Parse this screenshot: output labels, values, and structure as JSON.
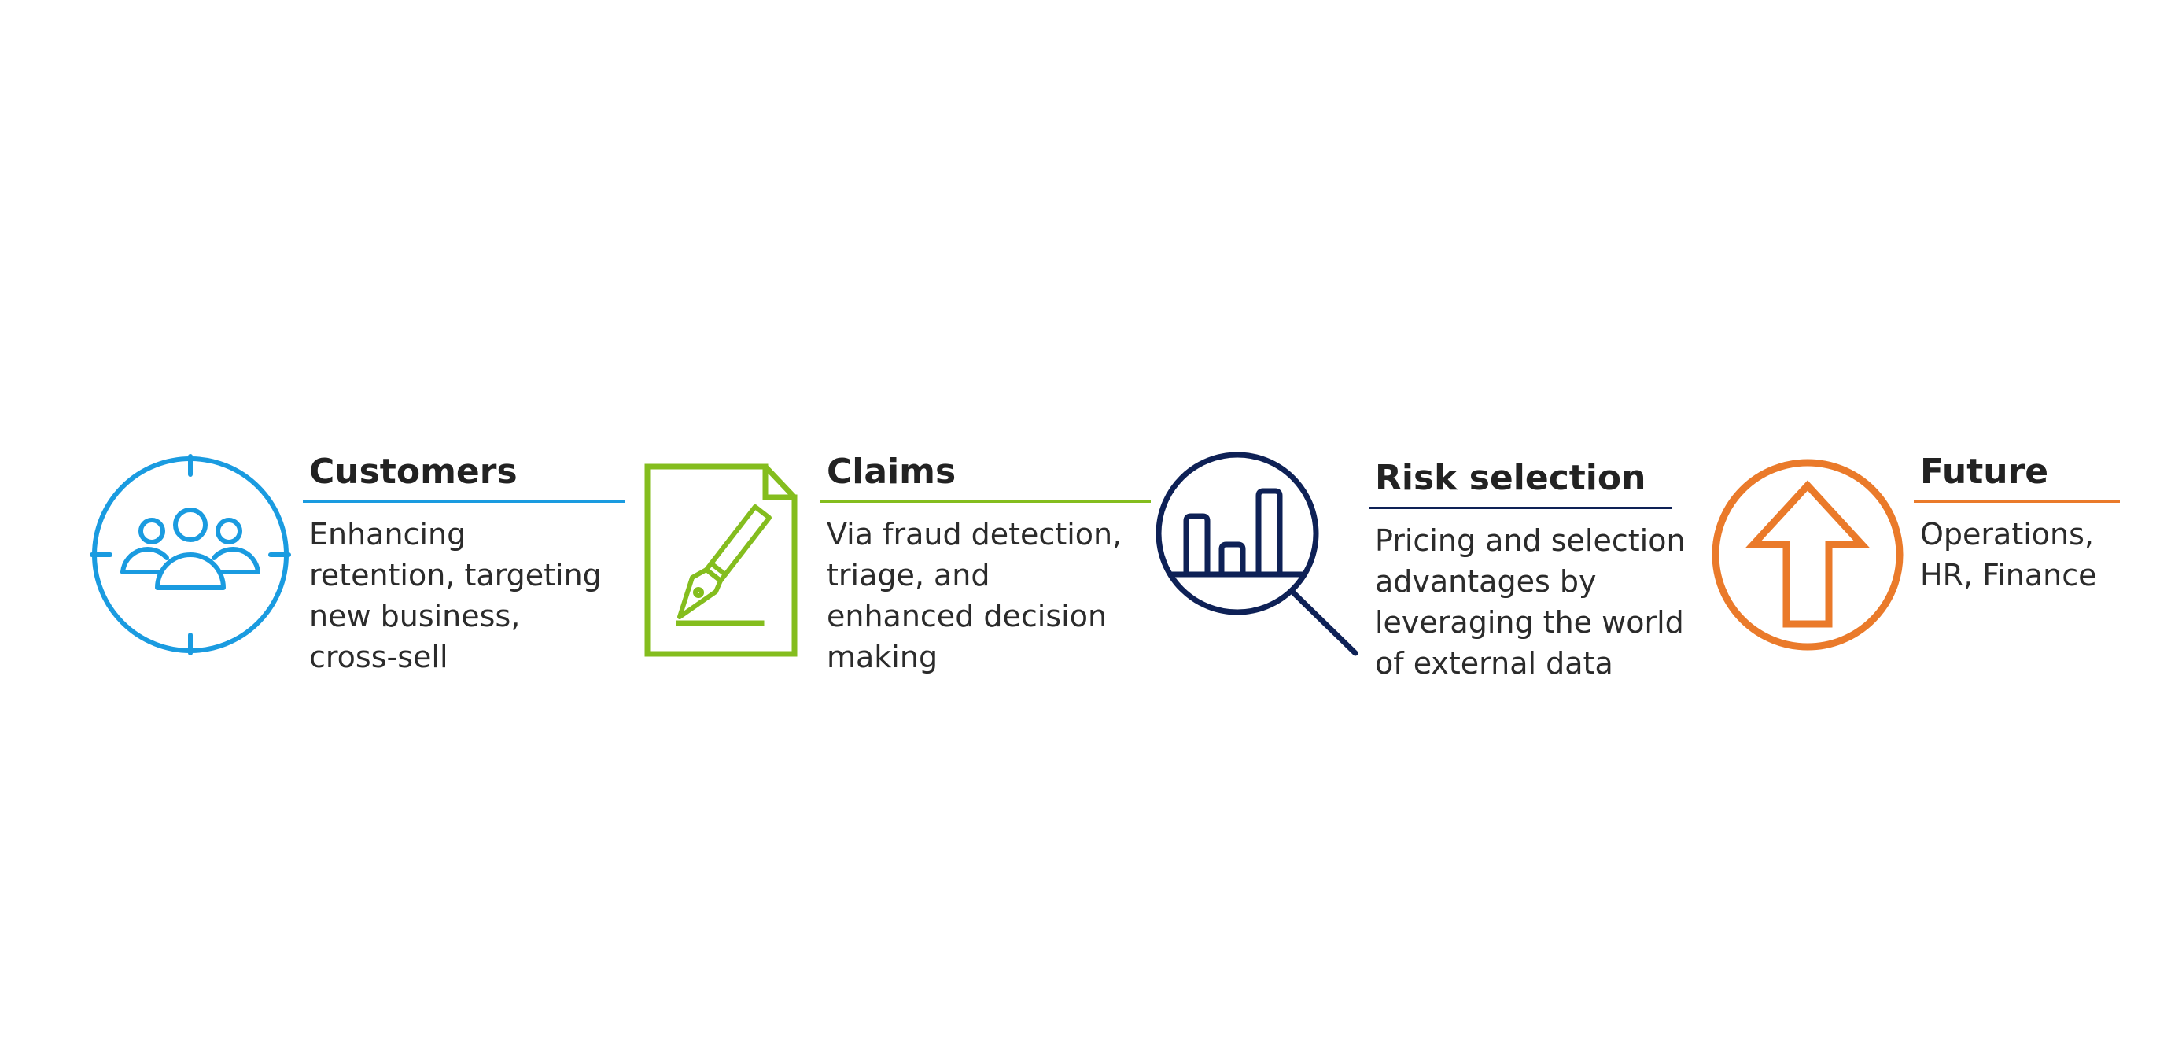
{
  "items": [
    {
      "title": "Customers",
      "description_lines": [
        "Enhancing",
        "retention, targeting",
        "new business,",
        "cross-sell"
      ],
      "icon": "customers-target-icon",
      "color": "#1a9be0"
    },
    {
      "title": "Claims",
      "description_lines": [
        "Via fraud detection,",
        "triage, and",
        "enhanced decision",
        "making"
      ],
      "icon": "document-pen-icon",
      "color": "#84bd1e"
    },
    {
      "title": "Risk selection",
      "description_lines": [
        "Pricing and selection",
        "advantages by",
        "leveraging the world",
        "of external data"
      ],
      "icon": "magnifier-chart-icon",
      "color": "#0e2156"
    },
    {
      "title": "Future",
      "description_lines": [
        "Operations,",
        "HR, Finance"
      ],
      "icon": "arrow-up-circle-icon",
      "color": "#ea7a2a"
    }
  ]
}
